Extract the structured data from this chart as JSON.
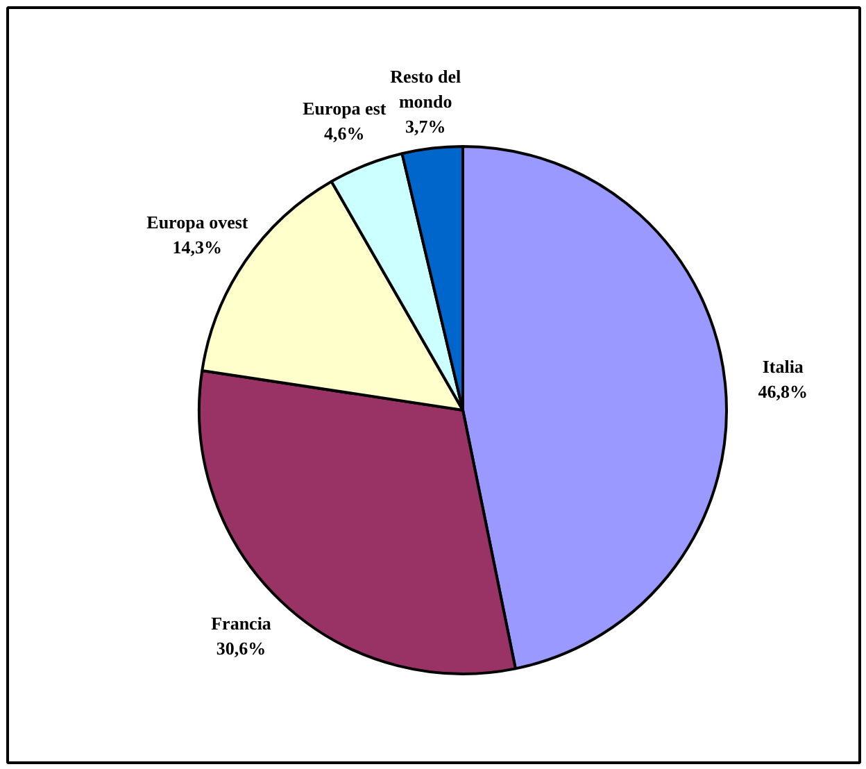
{
  "chart_data": {
    "type": "pie",
    "categories": [
      "Italia",
      "Francia",
      "Europa ovest",
      "Europa est",
      "Resto del mondo"
    ],
    "values": [
      46.8,
      30.6,
      14.3,
      4.6,
      3.7
    ],
    "value_labels": [
      "46,8%",
      "30,6%",
      "14,3%",
      "4,6%",
      "3,7%"
    ],
    "colors": [
      "#9999ff",
      "#993366",
      "#ffffcc",
      "#ccffff",
      "#0066cc"
    ]
  }
}
